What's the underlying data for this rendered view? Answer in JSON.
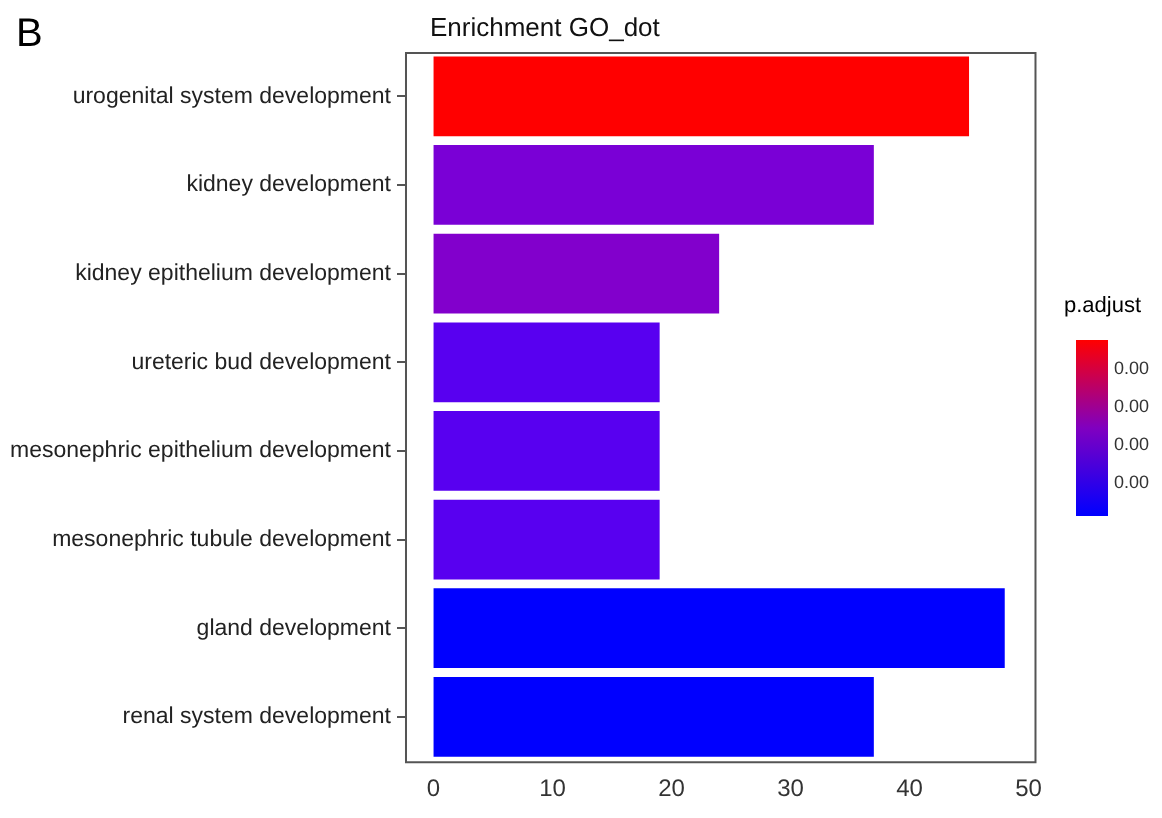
{
  "chart_data": {
    "type": "bar",
    "orientation": "horizontal",
    "title": "Enrichment GO_dot",
    "clabel": "p.adjust",
    "annotations": [
      "B",
      "0.00",
      "0.00",
      "0.00",
      "0.00"
    ],
    "categories": [
      "urogenital system development",
      "kidney development",
      "kidney epithelium development",
      "ureteric bud development",
      "mesonephric epithelium development",
      "mesonephric tubule development",
      "gland development",
      "renal system development"
    ],
    "values": [
      45,
      37,
      24,
      19,
      19,
      19,
      48,
      37
    ],
    "colors": [
      "#ff0000",
      "#7a00d6",
      "#8200cc",
      "#5800f0",
      "#5800f0",
      "#5800f0",
      "#0000ff",
      "#0000ff"
    ],
    "xlim": [
      -2.4,
      50.5
    ],
    "xticks": [
      0,
      10,
      20,
      30,
      40,
      50
    ],
    "grid": false,
    "legend": false
  }
}
